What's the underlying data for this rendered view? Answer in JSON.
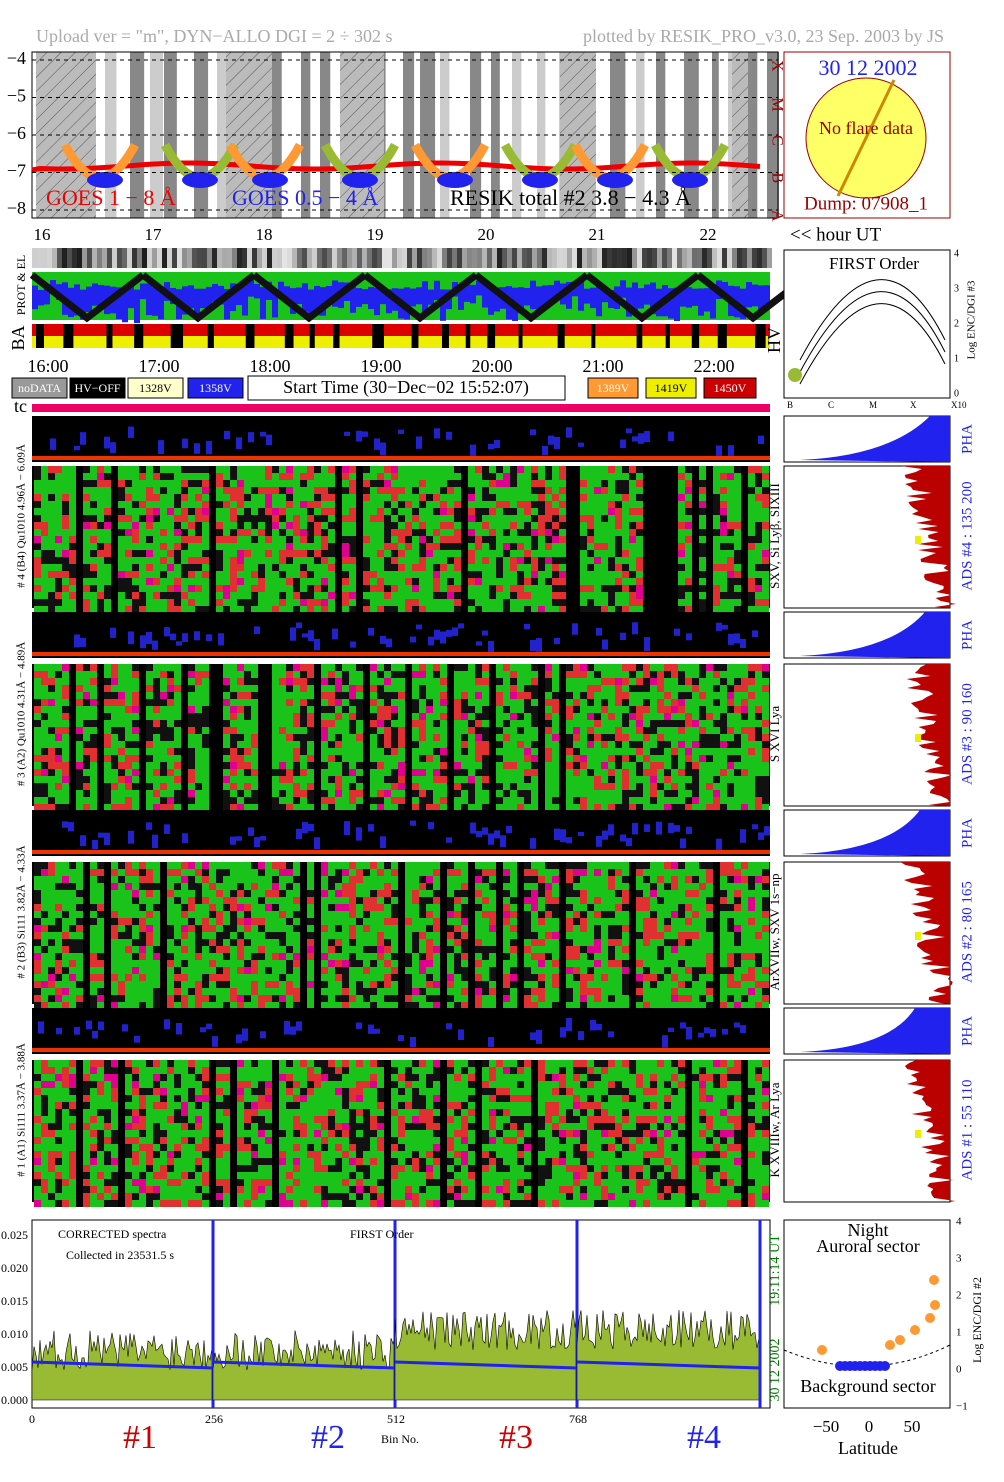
{
  "header": {
    "left": "Upload ver = \"m\", DYN−ALLO DGI =   2 ÷ 302 s",
    "right": "plotted by RESIK_PRO_v3.0, 23 Sep. 2003 by JS"
  },
  "goes": {
    "yticks": [
      "−4",
      "−5",
      "−6",
      "−7",
      "−8"
    ],
    "classes": [
      "X",
      "M",
      "C",
      "B",
      "A"
    ],
    "legend": [
      "GOES 1 − 8 Å",
      "GOES 0.5 − 4 Å",
      "RESIK total #2  3.8 − 4.3 Å"
    ]
  },
  "sun": {
    "date": "30 12 2002",
    "note": "No flare data",
    "dump": "Dump: 07908_1"
  },
  "hours": {
    "ticks": [
      "16",
      "17",
      "18",
      "19",
      "20",
      "21",
      "22"
    ],
    "unit": "<< hour UT"
  },
  "side_labels": {
    "prot": "PROT & EL",
    "ba": "BA",
    "hv": "HV",
    "tc": "tc"
  },
  "time_ticks": [
    "16:00",
    "17:00",
    "18:00",
    "19:00",
    "20:00",
    "21:00",
    "22:00"
  ],
  "legend_boxes": [
    "noDATA",
    "HV−OFF",
    "1328V",
    "1358V",
    "1389V",
    "1419V",
    "1450V"
  ],
  "start_time": "Start Time (30−Dec−02 15:52:07)",
  "hv_panel": {
    "title": "FIRST Order",
    "yticks": [
      "4",
      "3",
      "2",
      "1",
      "0"
    ],
    "ylabel": "Log ENC/DGI #3",
    "xticks": [
      "B",
      "C",
      "M",
      "X",
      "X10"
    ]
  },
  "channels": [
    {
      "left": "# 4 (B4) Qu1010 4.96Å − 6.09Å",
      "lines": "SXV, Si Lyβ, SIXIII",
      "ads": "ADS #4 :   135 200",
      "pha": "PHA"
    },
    {
      "left": "# 3 (A2) Qu1010 4.31Å − 4.89Å",
      "lines": "S XVI Lya",
      "ads": "ADS #3 :   90 160",
      "pha": "PHA"
    },
    {
      "left": "# 2 (B3) Si111 3.82Å − 4.33Å",
      "lines": "ArXVIIw, SXV 1s−np",
      "ads": "ADS #2 :   80 165",
      "pha": "PHA"
    },
    {
      "left": "# 1 (A1) Si111 3.37Å − 3.88Å",
      "lines": "K XVIIIw, Ar Lya",
      "ads": "ADS #1 :   55 110",
      "pha": "PHA"
    }
  ],
  "spectrum": {
    "yticks": [
      "0.025",
      "0.020",
      "0.015",
      "0.010",
      "0.005",
      "0.000"
    ],
    "text1": "CORRECTED spectra",
    "text2": "Collected in 23531.5 s",
    "order": "FIRST Order",
    "xticks": [
      "0",
      "256",
      "512",
      "768"
    ],
    "xlabel": "Bin No.",
    "channels": [
      "#1",
      "#2",
      "#3",
      "#4"
    ],
    "stamp": "19:11:14 UT",
    "stamp_date": "30 12 2002"
  },
  "orbit": {
    "title": "Night",
    "sub": "Auroral sector",
    "bottom": "Background sector",
    "yticks": [
      "4",
      "3",
      "2",
      "1",
      "0",
      "−1"
    ],
    "xticks": [
      "−50",
      "0",
      "50"
    ],
    "xlabel": "Latitude",
    "ylabel": "Log ENC/DGI #2"
  }
}
